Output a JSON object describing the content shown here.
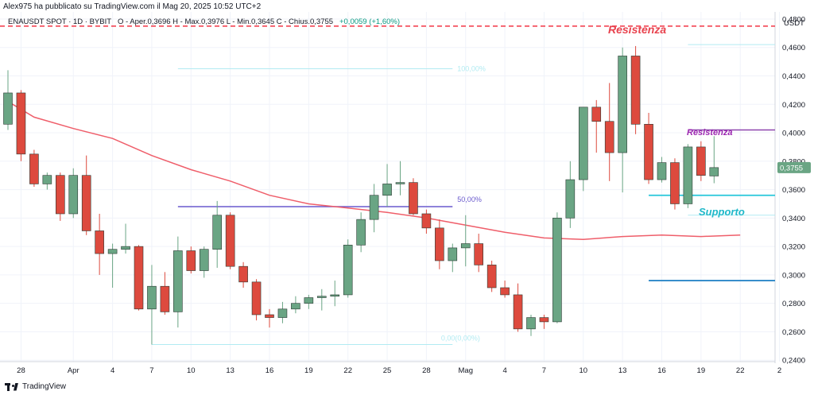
{
  "header": {
    "publisher_text": "Alex975 ha pubblicato su TradingView.com il Mag 20, 2025 10:52 UTC+2",
    "symbol": "ENAUSDT SPOT · 1D · BYBIT",
    "ohlc": "O - Aper.0,3696  H - Max.0,3976  L - Min.0,3645  C - Chius.0,3755",
    "change": "+0,0059 (+1,60%)"
  },
  "footer": {
    "brand": "TradingView"
  },
  "chart_data": {
    "type": "candlestick",
    "axis_unit": "USDT",
    "y_ticks": [
      "0,4800",
      "0,4600",
      "0,4400",
      "0,4200",
      "0,4000",
      "0,3800",
      "0,3600",
      "0,3400",
      "0,3200",
      "0,3000",
      "0,2800",
      "0,2600",
      "0,2400"
    ],
    "ylim": [
      0.239,
      0.485
    ],
    "x_ticks": [
      {
        "label": "28",
        "i": 1
      },
      {
        "label": "Apr",
        "i": 5
      },
      {
        "label": "4",
        "i": 8
      },
      {
        "label": "7",
        "i": 11
      },
      {
        "label": "10",
        "i": 14
      },
      {
        "label": "13",
        "i": 17
      },
      {
        "label": "16",
        "i": 20
      },
      {
        "label": "19",
        "i": 23
      },
      {
        "label": "22",
        "i": 26
      },
      {
        "label": "25",
        "i": 29
      },
      {
        "label": "28",
        "i": 32
      },
      {
        "label": "Mag",
        "i": 35
      },
      {
        "label": "4",
        "i": 38
      },
      {
        "label": "7",
        "i": 41
      },
      {
        "label": "10",
        "i": 44
      },
      {
        "label": "13",
        "i": 47
      },
      {
        "label": "16",
        "i": 50
      },
      {
        "label": "19",
        "i": 53
      },
      {
        "label": "22",
        "i": 56
      },
      {
        "label": "2",
        "i": 59
      }
    ],
    "candles": [
      {
        "o": 0.406,
        "h": 0.444,
        "l": 0.402,
        "c": 0.428
      },
      {
        "o": 0.428,
        "h": 0.43,
        "l": 0.38,
        "c": 0.385
      },
      {
        "o": 0.385,
        "h": 0.388,
        "l": 0.362,
        "c": 0.364
      },
      {
        "o": 0.364,
        "h": 0.372,
        "l": 0.36,
        "c": 0.37
      },
      {
        "o": 0.37,
        "h": 0.372,
        "l": 0.338,
        "c": 0.343
      },
      {
        "o": 0.343,
        "h": 0.375,
        "l": 0.34,
        "c": 0.37
      },
      {
        "o": 0.37,
        "h": 0.384,
        "l": 0.328,
        "c": 0.331
      },
      {
        "o": 0.331,
        "h": 0.343,
        "l": 0.3,
        "c": 0.315
      },
      {
        "o": 0.315,
        "h": 0.322,
        "l": 0.291,
        "c": 0.318
      },
      {
        "o": 0.318,
        "h": 0.336,
        "l": 0.315,
        "c": 0.32
      },
      {
        "o": 0.32,
        "h": 0.321,
        "l": 0.275,
        "c": 0.276
      },
      {
        "o": 0.276,
        "h": 0.307,
        "l": 0.251,
        "c": 0.292
      },
      {
        "o": 0.292,
        "h": 0.302,
        "l": 0.272,
        "c": 0.274
      },
      {
        "o": 0.274,
        "h": 0.327,
        "l": 0.263,
        "c": 0.317
      },
      {
        "o": 0.317,
        "h": 0.32,
        "l": 0.301,
        "c": 0.303
      },
      {
        "o": 0.303,
        "h": 0.32,
        "l": 0.298,
        "c": 0.318
      },
      {
        "o": 0.318,
        "h": 0.352,
        "l": 0.305,
        "c": 0.342
      },
      {
        "o": 0.342,
        "h": 0.344,
        "l": 0.304,
        "c": 0.306
      },
      {
        "o": 0.306,
        "h": 0.309,
        "l": 0.291,
        "c": 0.295
      },
      {
        "o": 0.295,
        "h": 0.297,
        "l": 0.268,
        "c": 0.272
      },
      {
        "o": 0.272,
        "h": 0.276,
        "l": 0.263,
        "c": 0.27
      },
      {
        "o": 0.27,
        "h": 0.281,
        "l": 0.266,
        "c": 0.276
      },
      {
        "o": 0.276,
        "h": 0.285,
        "l": 0.273,
        "c": 0.28
      },
      {
        "o": 0.28,
        "h": 0.286,
        "l": 0.276,
        "c": 0.284
      },
      {
        "o": 0.284,
        "h": 0.29,
        "l": 0.275,
        "c": 0.285
      },
      {
        "o": 0.285,
        "h": 0.296,
        "l": 0.278,
        "c": 0.286
      },
      {
        "o": 0.286,
        "h": 0.325,
        "l": 0.284,
        "c": 0.321
      },
      {
        "o": 0.321,
        "h": 0.344,
        "l": 0.316,
        "c": 0.339
      },
      {
        "o": 0.339,
        "h": 0.364,
        "l": 0.33,
        "c": 0.356
      },
      {
        "o": 0.356,
        "h": 0.378,
        "l": 0.348,
        "c": 0.364
      },
      {
        "o": 0.364,
        "h": 0.38,
        "l": 0.356,
        "c": 0.365
      },
      {
        "o": 0.365,
        "h": 0.368,
        "l": 0.342,
        "c": 0.343
      },
      {
        "o": 0.343,
        "h": 0.346,
        "l": 0.329,
        "c": 0.333
      },
      {
        "o": 0.333,
        "h": 0.339,
        "l": 0.304,
        "c": 0.31
      },
      {
        "o": 0.31,
        "h": 0.322,
        "l": 0.302,
        "c": 0.319
      },
      {
        "o": 0.319,
        "h": 0.342,
        "l": 0.306,
        "c": 0.322
      },
      {
        "o": 0.322,
        "h": 0.329,
        "l": 0.302,
        "c": 0.307
      },
      {
        "o": 0.307,
        "h": 0.31,
        "l": 0.288,
        "c": 0.291
      },
      {
        "o": 0.291,
        "h": 0.296,
        "l": 0.284,
        "c": 0.286
      },
      {
        "o": 0.286,
        "h": 0.294,
        "l": 0.26,
        "c": 0.262
      },
      {
        "o": 0.262,
        "h": 0.272,
        "l": 0.257,
        "c": 0.27
      },
      {
        "o": 0.27,
        "h": 0.272,
        "l": 0.262,
        "c": 0.267
      },
      {
        "o": 0.267,
        "h": 0.344,
        "l": 0.266,
        "c": 0.34
      },
      {
        "o": 0.34,
        "h": 0.38,
        "l": 0.333,
        "c": 0.367
      },
      {
        "o": 0.367,
        "h": 0.416,
        "l": 0.359,
        "c": 0.418
      },
      {
        "o": 0.418,
        "h": 0.423,
        "l": 0.386,
        "c": 0.408
      },
      {
        "o": 0.408,
        "h": 0.435,
        "l": 0.366,
        "c": 0.386
      },
      {
        "o": 0.386,
        "h": 0.46,
        "l": 0.358,
        "c": 0.454
      },
      {
        "o": 0.454,
        "h": 0.461,
        "l": 0.399,
        "c": 0.406
      },
      {
        "o": 0.406,
        "h": 0.414,
        "l": 0.364,
        "c": 0.367
      },
      {
        "o": 0.367,
        "h": 0.383,
        "l": 0.365,
        "c": 0.379
      },
      {
        "o": 0.379,
        "h": 0.382,
        "l": 0.346,
        "c": 0.35
      },
      {
        "o": 0.35,
        "h": 0.392,
        "l": 0.347,
        "c": 0.39
      },
      {
        "o": 0.39,
        "h": 0.394,
        "l": 0.366,
        "c": 0.37
      },
      {
        "o": 0.3696,
        "h": 0.3976,
        "l": 0.3645,
        "c": 0.3755
      }
    ],
    "moving_average": [
      {
        "i": 0,
        "v": 0.422
      },
      {
        "i": 2,
        "v": 0.411
      },
      {
        "i": 5,
        "v": 0.403
      },
      {
        "i": 8,
        "v": 0.396
      },
      {
        "i": 11,
        "v": 0.384
      },
      {
        "i": 14,
        "v": 0.374
      },
      {
        "i": 17,
        "v": 0.366
      },
      {
        "i": 20,
        "v": 0.356
      },
      {
        "i": 23,
        "v": 0.35
      },
      {
        "i": 26,
        "v": 0.347
      },
      {
        "i": 29,
        "v": 0.344
      },
      {
        "i": 32,
        "v": 0.34
      },
      {
        "i": 35,
        "v": 0.335
      },
      {
        "i": 38,
        "v": 0.33
      },
      {
        "i": 41,
        "v": 0.326
      },
      {
        "i": 44,
        "v": 0.325
      },
      {
        "i": 47,
        "v": 0.327
      },
      {
        "i": 50,
        "v": 0.328
      },
      {
        "i": 53,
        "v": 0.327
      },
      {
        "i": 56,
        "v": 0.328
      }
    ],
    "last_price": "0,3755",
    "annotations": {
      "resistance_top": {
        "label": "Resistenza",
        "price": 0.475
      },
      "resistance_mid": {
        "label": "Resistenza",
        "price": 0.402
      },
      "support": {
        "label": "Supporto",
        "price": 0.356
      },
      "support_low": {
        "price": 0.296
      },
      "fib_100": {
        "label": "100,00%",
        "price": 0.445
      },
      "fib_50": {
        "label": "50,00%",
        "price": 0.348
      },
      "fib_0": {
        "label": "0,00(0,00%)",
        "price": 0.251
      }
    },
    "colors": {
      "up": "#6aa584",
      "down": "#dd4a3e",
      "ma": "#ef5e6a",
      "resistance": "#f23645",
      "resistance_mid": "#8e44ad",
      "support": "#26c6da",
      "support_low": "#2a86c7",
      "fib": "#6a5acd",
      "last_price_box": "#6aa584"
    }
  }
}
